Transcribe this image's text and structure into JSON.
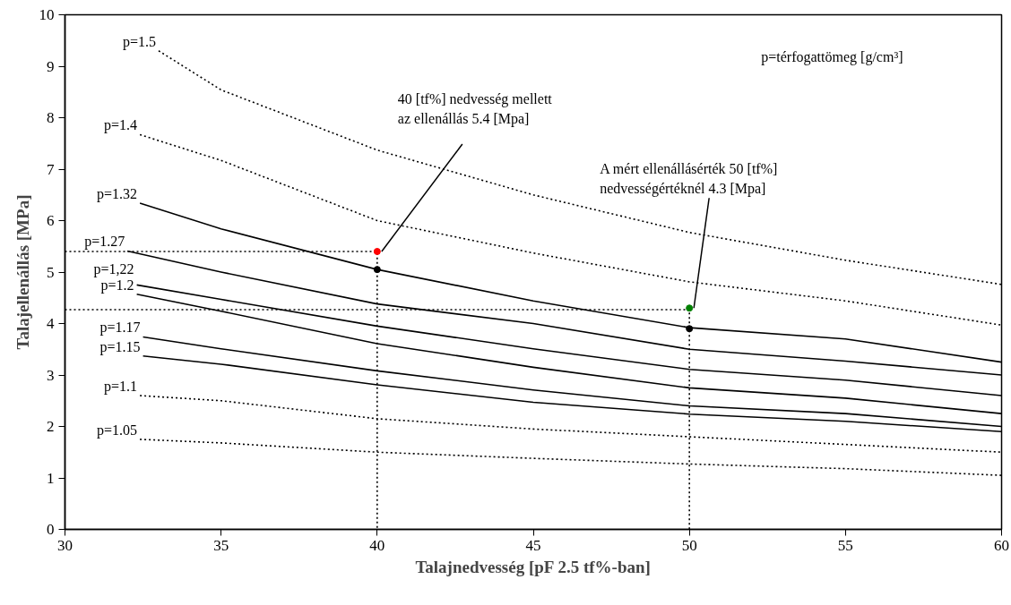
{
  "chart_data": {
    "type": "line",
    "xlabel": "Talajnedvesség [pF 2.5 tf%-ban]",
    "ylabel": "Talajellenállás [MPa]",
    "xlim": [
      30,
      60
    ],
    "xticks": [
      30,
      35,
      40,
      45,
      50,
      55,
      60
    ],
    "ylim": [
      0,
      10
    ],
    "yticks": [
      0,
      1,
      2,
      3,
      4,
      5,
      6,
      7,
      8,
      9,
      10
    ],
    "grid": false,
    "series": [
      {
        "name": "p=1.5",
        "color": "#000000",
        "line_style": "dotted",
        "x": [
          33,
          35,
          40,
          45,
          50,
          55,
          60
        ],
        "values": [
          9.3,
          8.54,
          7.37,
          6.5,
          5.77,
          5.23,
          4.76
        ]
      },
      {
        "name": "p=1.4",
        "color": "#000000",
        "line_style": "dotted",
        "x": [
          32.4,
          35,
          40,
          45,
          50,
          55,
          60
        ],
        "values": [
          7.67,
          7.17,
          6.0,
          5.37,
          4.81,
          4.44,
          3.97
        ]
      },
      {
        "name": "p=1.32",
        "color": "#000000",
        "line_style": "solid",
        "x": [
          32.4,
          35,
          40,
          45,
          50,
          55,
          60
        ],
        "values": [
          6.34,
          5.84,
          5.05,
          4.44,
          3.92,
          3.7,
          3.25
        ]
      },
      {
        "name": "p=1.27",
        "color": "#000000",
        "line_style": "solid",
        "x": [
          32.0,
          35,
          40,
          45,
          50,
          55,
          60
        ],
        "values": [
          5.41,
          5.0,
          4.38,
          4.0,
          3.5,
          3.27,
          3.0
        ]
      },
      {
        "name": "p=1,22",
        "color": "#000000",
        "line_style": "solid",
        "x": [
          32.3,
          35,
          40,
          45,
          50,
          55,
          60
        ],
        "values": [
          4.75,
          4.47,
          3.95,
          3.51,
          3.11,
          2.9,
          2.6
        ]
      },
      {
        "name": "p=1.2",
        "color": "#000000",
        "line_style": "solid",
        "x": [
          32.3,
          35,
          40,
          45,
          50,
          55,
          60
        ],
        "values": [
          4.57,
          4.24,
          3.61,
          3.15,
          2.75,
          2.55,
          2.25
        ]
      },
      {
        "name": "p=1.17",
        "color": "#000000",
        "line_style": "solid",
        "x": [
          32.5,
          35,
          40,
          45,
          50,
          55,
          60
        ],
        "values": [
          3.74,
          3.51,
          3.08,
          2.71,
          2.4,
          2.25,
          2.0
        ]
      },
      {
        "name": "p=1.15",
        "color": "#000000",
        "line_style": "solid",
        "x": [
          32.5,
          35,
          40,
          45,
          50,
          55,
          60
        ],
        "values": [
          3.37,
          3.21,
          2.81,
          2.47,
          2.24,
          2.1,
          1.9
        ]
      },
      {
        "name": "p=1.1",
        "color": "#000000",
        "line_style": "dotted",
        "x": [
          32.4,
          35,
          40,
          45,
          50,
          55,
          60
        ],
        "values": [
          2.6,
          2.5,
          2.15,
          1.95,
          1.8,
          1.65,
          1.5
        ]
      },
      {
        "name": "p=1.05",
        "color": "#000000",
        "line_style": "dotted",
        "x": [
          32.4,
          35,
          40,
          45,
          50,
          55,
          60
        ],
        "values": [
          1.75,
          1.68,
          1.5,
          1.38,
          1.27,
          1.18,
          1.05
        ]
      },
      {
        "color": "#000000",
        "line_style": "dotted",
        "x": [
          30,
          40,
          40
        ],
        "values": [
          5.4,
          5.4,
          0
        ]
      },
      {
        "color": "#000000",
        "line_style": "dotted",
        "x": [
          30,
          50,
          50
        ],
        "values": [
          4.27,
          4.27,
          0
        ]
      },
      {
        "type": "scatter",
        "marker": "circle",
        "color": "#ff0000",
        "x": [
          40
        ],
        "values": [
          5.4
        ]
      },
      {
        "type": "scatter",
        "marker": "circle",
        "color": "#008000",
        "x": [
          50
        ],
        "values": [
          4.3
        ]
      },
      {
        "type": "scatter",
        "marker": "circle",
        "color": "#000000",
        "x": [
          40,
          50
        ],
        "values": [
          5.05,
          3.9
        ]
      }
    ],
    "annotations": [
      {
        "text": "40 [tf%] nedvesség mellett\naz ellenállás 5.4 [Mpa]",
        "x": 40,
        "y": 5.4
      },
      {
        "text": "A mért ellenállásérték 50 [tf%]\nnedvességértéknél 4.3 [Mpa]",
        "x": 50,
        "y": 4.3
      },
      "p=térfogattömeg [g/cm³]"
    ]
  }
}
